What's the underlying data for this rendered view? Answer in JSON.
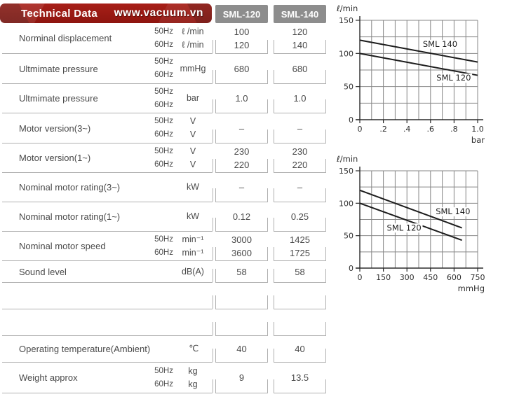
{
  "header": {
    "title": "Technical Data",
    "website": "www.vacuum.vn",
    "columns": [
      "SML-120",
      "SML-140"
    ],
    "bar_color": "#9c1a13",
    "column_header_color": "#8d8d8d"
  },
  "table": {
    "rows": [
      {
        "label": "Norminal displacement",
        "freq": [
          "50Hz",
          "60Hz"
        ],
        "unit": [
          "ℓ /min",
          "ℓ /min"
        ],
        "sml120": [
          "100",
          "120"
        ],
        "sml140": [
          "120",
          "140"
        ]
      },
      {
        "label": "Ultmimate pressure",
        "freq": [
          "50Hz",
          "60Hz"
        ],
        "unit": [
          "mmHg"
        ],
        "sml120": [
          "680"
        ],
        "sml140": [
          "680"
        ]
      },
      {
        "label": "Ultmimate pressure",
        "freq": [
          "50Hz",
          "60Hz"
        ],
        "unit": [
          "bar"
        ],
        "sml120": [
          "1.0"
        ],
        "sml140": [
          "1.0"
        ]
      },
      {
        "label": "Motor version(3~)",
        "freq": [
          "50Hz",
          "60Hz"
        ],
        "unit": [
          "V",
          "V"
        ],
        "sml120": [
          "–"
        ],
        "sml140": [
          "–"
        ]
      },
      {
        "label": "Motor version(1~)",
        "freq": [
          "50Hz",
          "60Hz"
        ],
        "unit": [
          "V",
          "V"
        ],
        "sml120": [
          "230",
          "220"
        ],
        "sml140": [
          "230",
          "220"
        ]
      },
      {
        "label": "Nominal motor rating(3~)",
        "freq": [],
        "unit": [
          "kW"
        ],
        "sml120": [
          "–"
        ],
        "sml140": [
          "–"
        ]
      },
      {
        "label": "Nominal motor rating(1~)",
        "freq": [],
        "unit": [
          "kW"
        ],
        "sml120": [
          "0.12"
        ],
        "sml140": [
          "0.25"
        ]
      },
      {
        "label": "Nominal motor speed",
        "freq": [
          "50Hz",
          "60Hz"
        ],
        "unit": [
          "min⁻¹",
          "min⁻¹"
        ],
        "sml120": [
          "3000",
          "3600"
        ],
        "sml140": [
          "1425",
          "1725"
        ]
      },
      {
        "label": "Sound level",
        "freq": [],
        "unit": [
          "dB(A)"
        ],
        "sml120": [
          "58"
        ],
        "sml140": [
          "58"
        ]
      },
      {
        "label": "",
        "freq": [],
        "unit": [],
        "sml120": [],
        "sml140": []
      },
      {
        "label": "",
        "freq": [],
        "unit": [],
        "sml120": [],
        "sml140": []
      },
      {
        "label": "Operating temperature(Ambient)",
        "freq": [],
        "unit": [
          "℃"
        ],
        "sml120": [
          "40"
        ],
        "sml140": [
          "40"
        ]
      },
      {
        "label": "Weight approx",
        "freq": [
          "50Hz",
          "60Hz"
        ],
        "unit": [
          "kg",
          "kg"
        ],
        "sml120": [
          "9"
        ],
        "sml140": [
          "13.5"
        ]
      }
    ]
  },
  "chart_data": [
    {
      "type": "line",
      "title": "Suction capacity vs pressure (bar)",
      "ylabel": "ℓ/min",
      "xlabel": "bar",
      "xlim": [
        0,
        1.0
      ],
      "ylim": [
        0,
        150
      ],
      "x_tick_step": 0.2,
      "x_minor_step": 0.1,
      "y_tick_step": 50,
      "y_minor_step": 25,
      "x_tick_labels": [
        "0",
        ".2",
        ".4",
        ".6",
        ".8",
        "1.0"
      ],
      "y_tick_labels": [
        "0",
        "50",
        "100",
        "150"
      ],
      "grid": true,
      "legend_position": "inline",
      "series": [
        {
          "name": "SML 140",
          "x": [
            0,
            1.0
          ],
          "y": [
            120,
            87
          ],
          "label_pos": [
            0.535,
            110
          ]
        },
        {
          "name": "SML 120",
          "x": [
            0,
            1.0
          ],
          "y": [
            100,
            67
          ],
          "label_pos": [
            0.65,
            59
          ]
        }
      ]
    },
    {
      "type": "line",
      "title": "Suction capacity vs vacuum (mmHg)",
      "ylabel": "ℓ/min",
      "xlabel": "mmHg",
      "xlim": [
        0,
        750
      ],
      "ylim": [
        0,
        150
      ],
      "x_tick_step": 150,
      "x_minor_step": 75,
      "y_tick_step": 50,
      "y_minor_step": 25,
      "x_tick_labels": [
        "0",
        "150",
        "300",
        "450",
        "600",
        "750"
      ],
      "y_tick_labels": [
        "0",
        "50",
        "100",
        "150"
      ],
      "grid": true,
      "legend_position": "inline",
      "series": [
        {
          "name": "SML 140",
          "x": [
            0,
            650
          ],
          "y": [
            120,
            62
          ],
          "label_pos": [
            483,
            83
          ]
        },
        {
          "name": "SML 120",
          "x": [
            0,
            650
          ],
          "y": [
            100,
            43
          ],
          "label_pos": [
            172,
            58
          ]
        }
      ]
    }
  ]
}
